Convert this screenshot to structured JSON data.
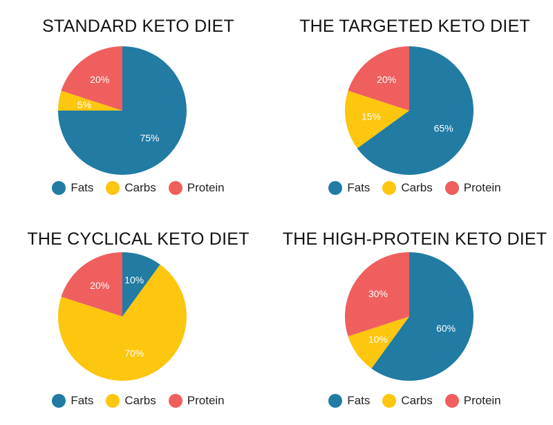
{
  "colors": {
    "fats": "#217ba3",
    "carbs": "#fdc60f",
    "protein": "#ef5f5e"
  },
  "chart_data": [
    {
      "type": "pie",
      "title": "STANDARD KETO DIET",
      "legend": [
        "Fats",
        "Carbs",
        "Protein"
      ],
      "legend_position": "bottom",
      "slices": [
        {
          "label": "Fats",
          "value": 75,
          "text": "75%",
          "color": "#217ba3"
        },
        {
          "label": "Carbs",
          "value": 5,
          "text": "5%",
          "color": "#fdc60f"
        },
        {
          "label": "Protein",
          "value": 20,
          "text": "20%",
          "color": "#ef5f5e"
        }
      ]
    },
    {
      "type": "pie",
      "title": "THE TARGETED KETO DIET",
      "legend": [
        "Fats",
        "Carbs",
        "Protein"
      ],
      "legend_position": "bottom",
      "slices": [
        {
          "label": "Fats",
          "value": 65,
          "text": "65%",
          "color": "#217ba3"
        },
        {
          "label": "Carbs",
          "value": 15,
          "text": "15%",
          "color": "#fdc60f"
        },
        {
          "label": "Protein",
          "value": 20,
          "text": "20%",
          "color": "#ef5f5e"
        }
      ]
    },
    {
      "type": "pie",
      "title": "THE CYCLICAL KETO DIET",
      "legend": [
        "Fats",
        "Carbs",
        "Protein"
      ],
      "legend_position": "bottom",
      "slices": [
        {
          "label": "Fats",
          "value": 10,
          "text": "10%",
          "color": "#217ba3"
        },
        {
          "label": "Carbs",
          "value": 70,
          "text": "70%",
          "color": "#fdc60f"
        },
        {
          "label": "Protein",
          "value": 20,
          "text": "20%",
          "color": "#ef5f5e"
        }
      ]
    },
    {
      "type": "pie",
      "title": "THE HIGH-PROTEIN KETO DIET",
      "legend": [
        "Fats",
        "Carbs",
        "Protein"
      ],
      "legend_position": "bottom",
      "slices": [
        {
          "label": "Fats",
          "value": 60,
          "text": "60%",
          "color": "#217ba3"
        },
        {
          "label": "Carbs",
          "value": 10,
          "text": "10%",
          "color": "#fdc60f"
        },
        {
          "label": "Protein",
          "value": 30,
          "text": "30%",
          "color": "#ef5f5e"
        }
      ]
    }
  ]
}
